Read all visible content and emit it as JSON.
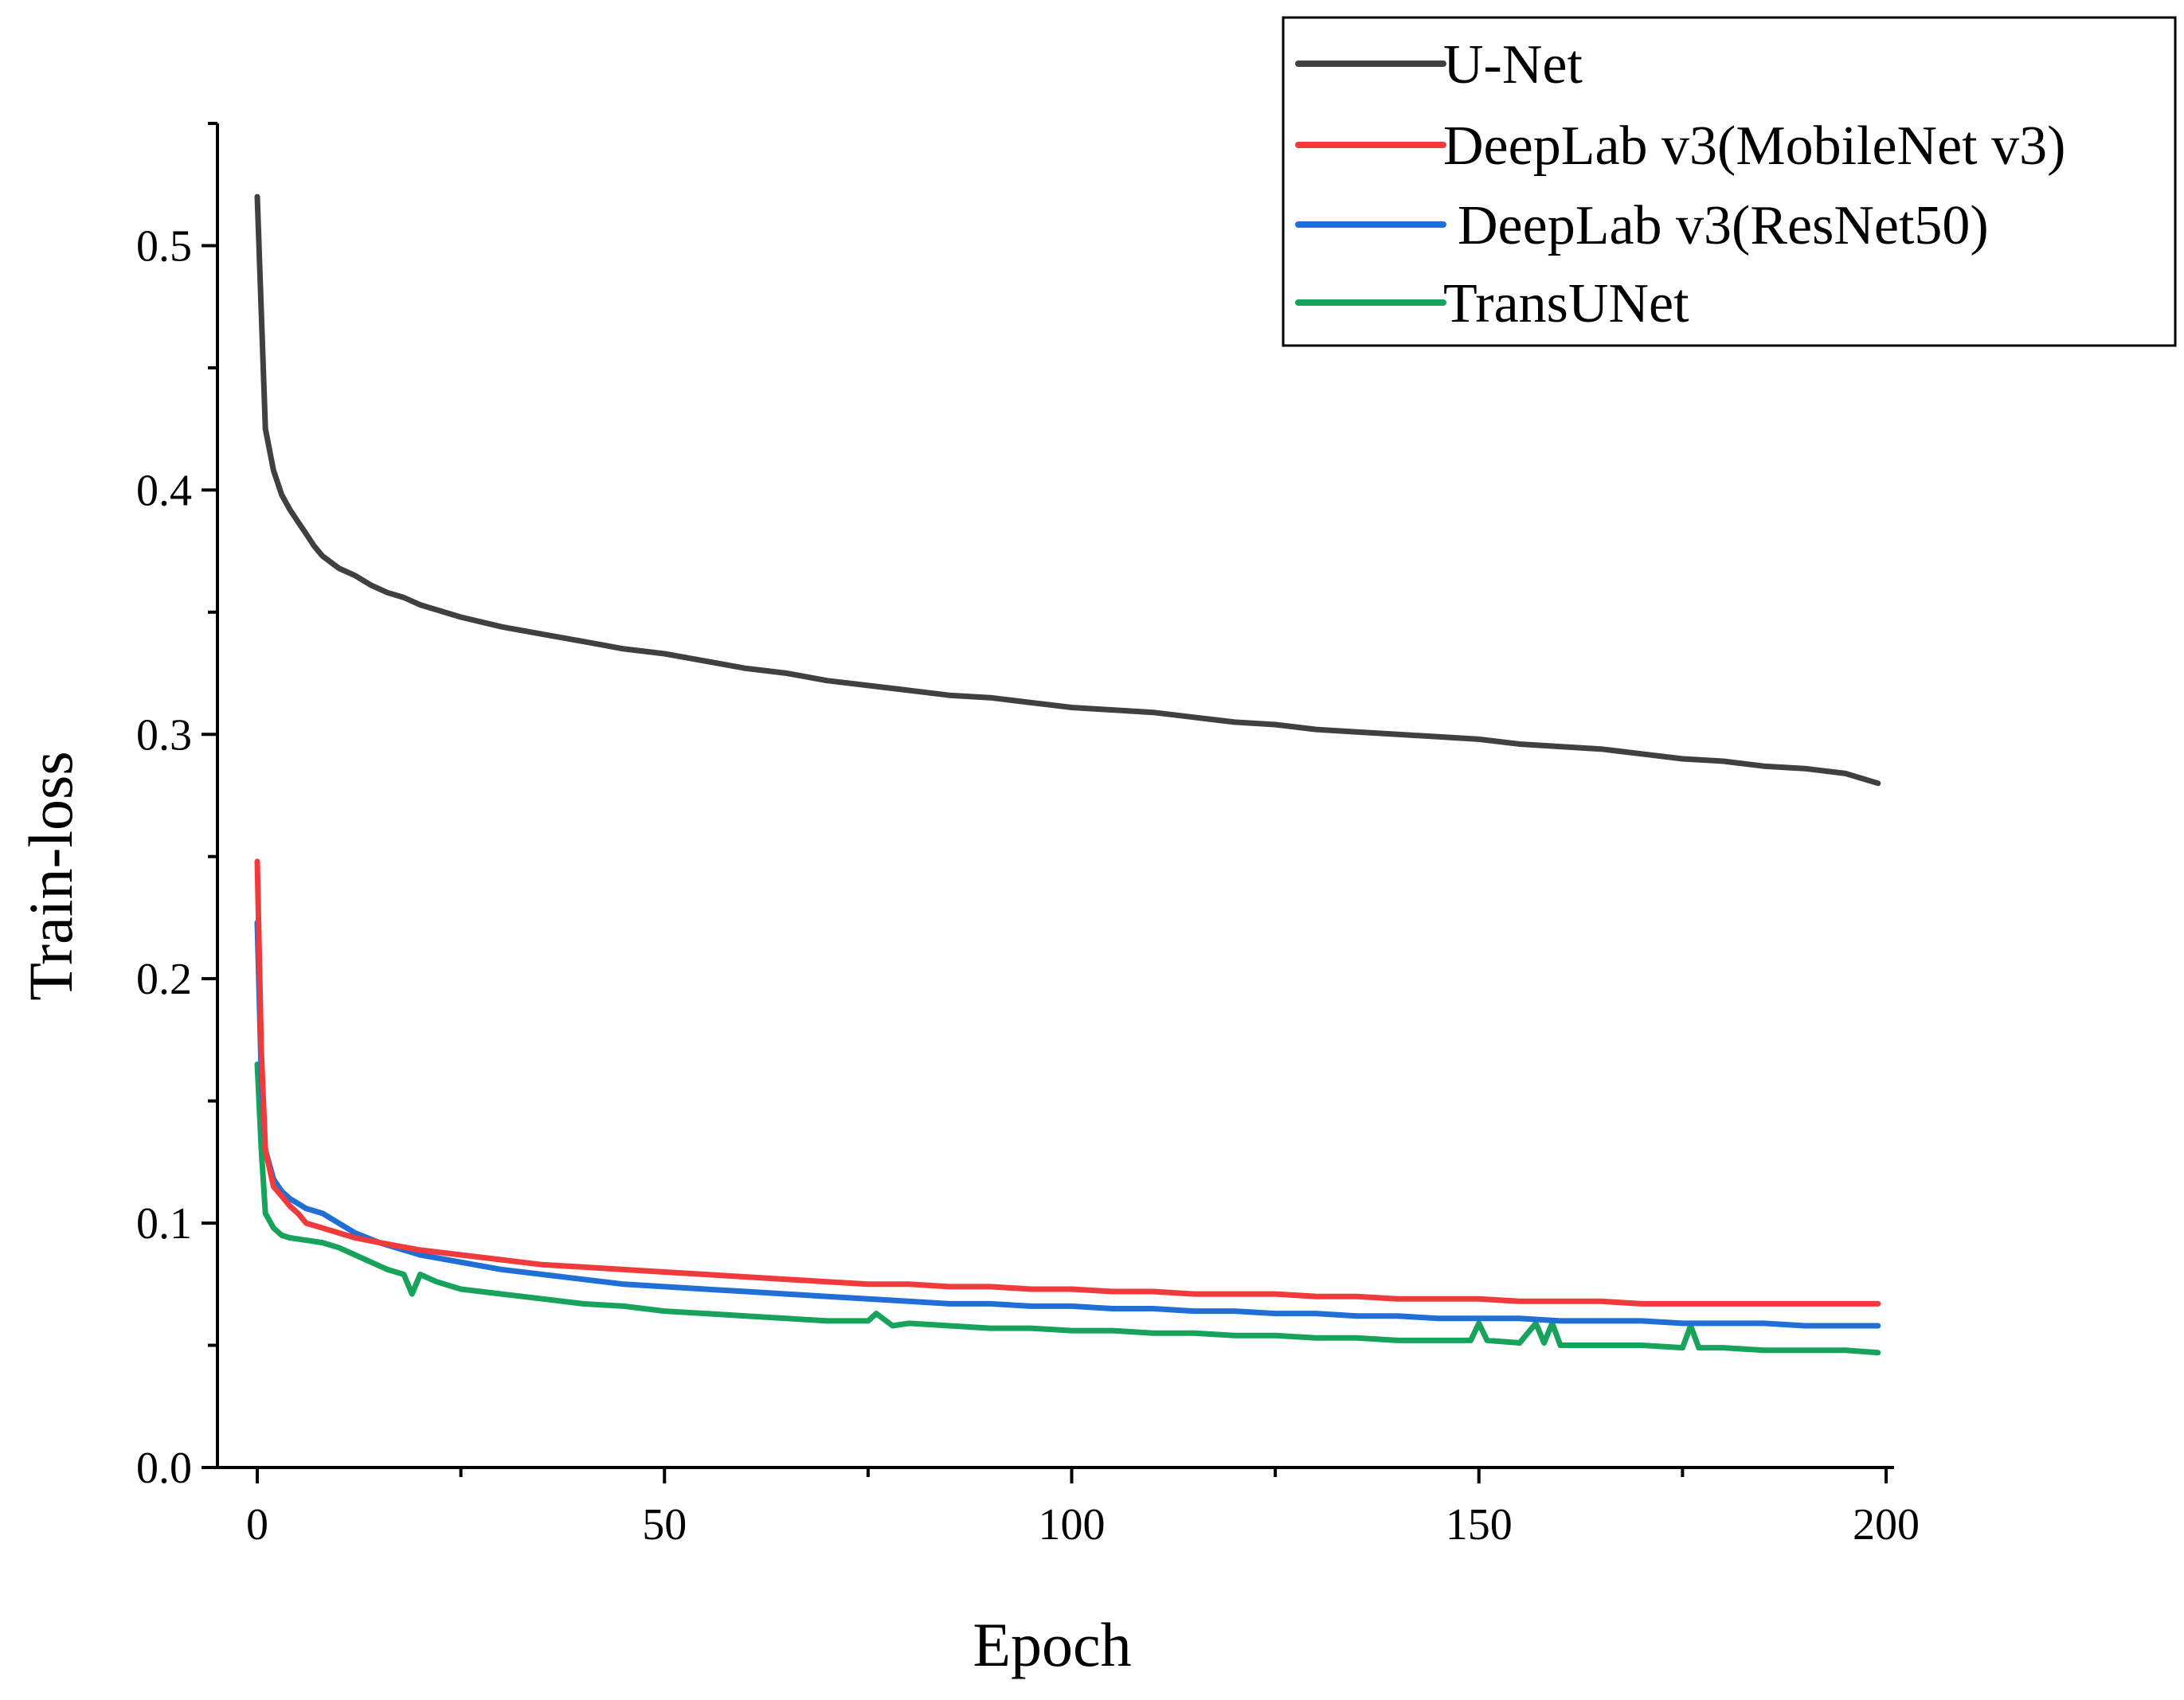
{
  "chart_data": {
    "type": "line",
    "title": "",
    "xlabel": "Epoch",
    "ylabel": "Train-loss",
    "xlim": [
      -5,
      200
    ],
    "ylim": [
      0,
      0.55
    ],
    "x_ticks": [
      "0",
      "50",
      "100",
      "150",
      "200"
    ],
    "y_ticks": [
      "0.0",
      "0.1",
      "0.2",
      "0.3",
      "0.4",
      "0.5"
    ],
    "legend_position": "top-right",
    "grid": false,
    "series": [
      {
        "name": "U-Net",
        "color": "#404040",
        "x": [
          0,
          1,
          2,
          3,
          4,
          5,
          6,
          7,
          8,
          10,
          12,
          14,
          16,
          18,
          20,
          25,
          30,
          35,
          40,
          45,
          50,
          55,
          60,
          65,
          70,
          75,
          80,
          85,
          90,
          95,
          100,
          105,
          110,
          115,
          120,
          125,
          130,
          135,
          140,
          145,
          150,
          155,
          160,
          165,
          170,
          175,
          180,
          185,
          190,
          195,
          199
        ],
        "values": [
          0.52,
          0.425,
          0.408,
          0.398,
          0.392,
          0.387,
          0.382,
          0.377,
          0.373,
          0.368,
          0.365,
          0.361,
          0.358,
          0.356,
          0.353,
          0.348,
          0.344,
          0.341,
          0.338,
          0.335,
          0.333,
          0.33,
          0.327,
          0.325,
          0.322,
          0.32,
          0.318,
          0.316,
          0.315,
          0.313,
          0.311,
          0.31,
          0.309,
          0.307,
          0.305,
          0.304,
          0.302,
          0.301,
          0.3,
          0.299,
          0.298,
          0.296,
          0.295,
          0.294,
          0.292,
          0.29,
          0.289,
          0.287,
          0.286,
          0.284,
          0.28
        ]
      },
      {
        "name": "DeepLab v3(MobileNet v3)",
        "color": "#ef3b3b",
        "x": [
          0,
          0.5,
          1,
          2,
          3,
          4,
          5,
          6,
          8,
          10,
          12,
          15,
          20,
          25,
          30,
          35,
          40,
          45,
          50,
          55,
          60,
          65,
          70,
          75,
          80,
          85,
          90,
          95,
          100,
          105,
          110,
          115,
          120,
          125,
          130,
          135,
          140,
          145,
          150,
          155,
          160,
          165,
          170,
          175,
          180,
          185,
          190,
          195,
          199
        ],
        "values": [
          0.248,
          0.17,
          0.13,
          0.115,
          0.111,
          0.107,
          0.104,
          0.1,
          0.098,
          0.096,
          0.094,
          0.092,
          0.089,
          0.087,
          0.085,
          0.083,
          0.082,
          0.081,
          0.08,
          0.079,
          0.078,
          0.077,
          0.076,
          0.075,
          0.075,
          0.074,
          0.074,
          0.073,
          0.073,
          0.072,
          0.072,
          0.071,
          0.071,
          0.071,
          0.07,
          0.07,
          0.069,
          0.069,
          0.069,
          0.068,
          0.068,
          0.068,
          0.067,
          0.067,
          0.067,
          0.067,
          0.067,
          0.067,
          0.067
        ]
      },
      {
        "name": "DeepLab v3(ResNet50)",
        "color": "#1f6fd6",
        "x": [
          0,
          0.5,
          1,
          2,
          3,
          4,
          5,
          6,
          8,
          10,
          12,
          15,
          20,
          25,
          30,
          35,
          40,
          45,
          50,
          55,
          60,
          65,
          70,
          75,
          80,
          85,
          90,
          95,
          100,
          105,
          110,
          115,
          120,
          125,
          130,
          135,
          140,
          145,
          150,
          155,
          160,
          165,
          170,
          175,
          180,
          185,
          190,
          195,
          199
        ],
        "values": [
          0.223,
          0.16,
          0.13,
          0.118,
          0.113,
          0.11,
          0.108,
          0.106,
          0.104,
          0.1,
          0.096,
          0.092,
          0.087,
          0.084,
          0.081,
          0.079,
          0.077,
          0.075,
          0.074,
          0.073,
          0.072,
          0.071,
          0.07,
          0.069,
          0.068,
          0.067,
          0.067,
          0.066,
          0.066,
          0.065,
          0.065,
          0.064,
          0.064,
          0.063,
          0.063,
          0.062,
          0.062,
          0.061,
          0.061,
          0.061,
          0.06,
          0.06,
          0.06,
          0.059,
          0.059,
          0.059,
          0.058,
          0.058,
          0.058
        ]
      },
      {
        "name": "TransUNet",
        "color": "#17a35c",
        "x": [
          0,
          0.5,
          1,
          2,
          3,
          4,
          6,
          8,
          10,
          12,
          14,
          16,
          18,
          19,
          20,
          22,
          25,
          30,
          35,
          40,
          45,
          50,
          55,
          60,
          65,
          70,
          75,
          76,
          78,
          80,
          85,
          90,
          95,
          100,
          105,
          110,
          115,
          120,
          125,
          130,
          135,
          140,
          145,
          149,
          150,
          151,
          155,
          157,
          158,
          159,
          160,
          165,
          170,
          175,
          176,
          177,
          180,
          185,
          190,
          195,
          199
        ],
        "values": [
          0.165,
          0.13,
          0.104,
          0.098,
          0.095,
          0.094,
          0.093,
          0.092,
          0.09,
          0.087,
          0.084,
          0.081,
          0.079,
          0.071,
          0.079,
          0.076,
          0.073,
          0.071,
          0.069,
          0.067,
          0.066,
          0.064,
          0.063,
          0.062,
          0.061,
          0.06,
          0.06,
          0.063,
          0.058,
          0.059,
          0.058,
          0.057,
          0.057,
          0.056,
          0.056,
          0.055,
          0.055,
          0.054,
          0.054,
          0.053,
          0.053,
          0.052,
          0.052,
          0.052,
          0.059,
          0.052,
          0.051,
          0.059,
          0.051,
          0.059,
          0.05,
          0.05,
          0.05,
          0.049,
          0.058,
          0.049,
          0.049,
          0.048,
          0.048,
          0.048,
          0.047
        ]
      }
    ]
  }
}
